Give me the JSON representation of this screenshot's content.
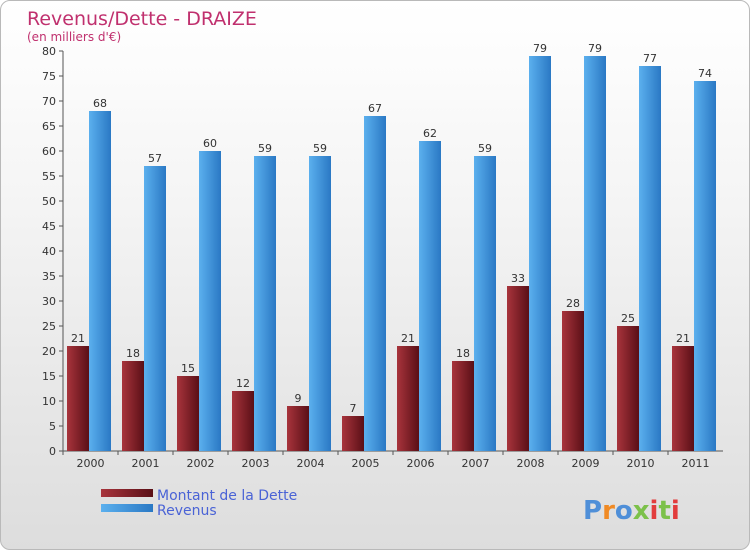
{
  "chart_data": {
    "type": "bar",
    "title": "Revenus/Dette - DRAIZE",
    "subtitle": "(en milliers d'€)",
    "categories": [
      "2000",
      "2001",
      "2002",
      "2003",
      "2004",
      "2005",
      "2006",
      "2007",
      "2008",
      "2009",
      "2010",
      "2011"
    ],
    "series": [
      {
        "name": "Montant de la Dette",
        "color": "#7a1e24",
        "values": [
          21,
          18,
          15,
          12,
          9,
          7,
          21,
          18,
          33,
          28,
          25,
          21
        ]
      },
      {
        "name": "Revenus",
        "color": "#3a8fd6",
        "values": [
          68,
          57,
          60,
          59,
          59,
          67,
          62,
          59,
          79,
          79,
          77,
          74
        ]
      }
    ],
    "ylim": [
      0,
      80
    ],
    "ytick_step": 5,
    "grid": false,
    "legend_position": "bottom-left"
  },
  "logo": {
    "text": "Proxiti",
    "colors": [
      "#4f8fd8",
      "#f08a24",
      "#7cc14a",
      "#e23c3c"
    ]
  }
}
